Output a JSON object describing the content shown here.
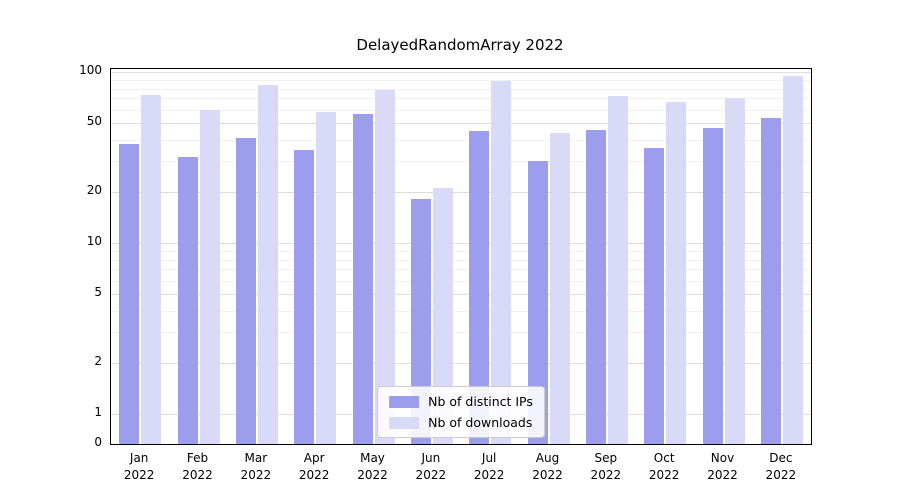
{
  "chart_data": {
    "type": "bar",
    "title": "DelayedRandomArray 2022",
    "categories": [
      "Jan 2022",
      "Feb 2022",
      "Mar 2022",
      "Apr 2022",
      "May 2022",
      "Jun 2022",
      "Jul 2022",
      "Aug 2022",
      "Sep 2022",
      "Oct 2022",
      "Nov 2022",
      "Dec 2022"
    ],
    "series": [
      {
        "name": "Nb of distinct IPs",
        "color": "#9d9dee",
        "values": [
          38,
          32,
          41,
          35,
          57,
          18,
          45,
          30,
          46,
          36,
          47,
          54
        ]
      },
      {
        "name": "Nb of downloads",
        "color": "#d9d9f8",
        "values": [
          73,
          60,
          84,
          58,
          78,
          21,
          89,
          44,
          72,
          67,
          70,
          95
        ]
      }
    ],
    "y_scale": "symlog",
    "y_ticks": [
      0,
      1,
      2,
      5,
      10,
      20,
      50,
      100
    ],
    "ylim": [
      0,
      110
    ],
    "xlabel": "",
    "ylabel": "",
    "grid": "horizontal",
    "legend_position": "lower center"
  }
}
